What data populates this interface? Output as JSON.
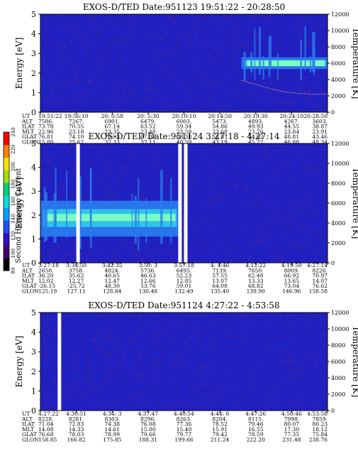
{
  "chart_data": [
    {
      "type": "heatmap",
      "title": "EXOS-D/TED   Date:951123   19:51:22 - 20:28:50",
      "ylabel": "Energy [eV]",
      "ylabel_right": "Temperature [K]",
      "ylim": [
        0,
        5
      ],
      "ylim_right": [
        0,
        12000
      ],
      "yticks": [
        "0",
        "1",
        "2",
        "3",
        "4",
        "5"
      ],
      "yticks_right": [
        "0",
        "2000",
        "4000",
        "6000",
        "8000",
        "10000",
        "12000"
      ],
      "band": {
        "start_frac": 0.7,
        "energy_low": 2.2,
        "energy_high": 2.8,
        "peak_energy": 2.5
      },
      "temperature_curve": [
        {
          "x": 0.7,
          "t": 3900
        },
        {
          "x": 0.75,
          "t": 3400
        },
        {
          "x": 0.8,
          "t": 2900
        },
        {
          "x": 0.85,
          "t": 2500
        },
        {
          "x": 0.9,
          "t": 2300
        },
        {
          "x": 0.95,
          "t": 2200
        },
        {
          "x": 1.0,
          "t": 2200
        }
      ],
      "rows": [
        {
          "label": "UT",
          "values": [
            "19:51:22",
            "19:56:10",
            "20: 0:58",
            "20: 5:30",
            "20:10:10",
            "20:14:50",
            "20:19:30",
            "20:24:10",
            "20:28:50"
          ]
        },
        {
          "label": "ALT",
          "values": [
            "7586.",
            "7267.",
            "6901.",
            "6479.",
            "6003.",
            "5473.",
            "4893.",
            "4267.",
            "3603."
          ]
        },
        {
          "label": "ILAT",
          "values": [
            "73.78",
            "70.55",
            "67.14",
            "63.52",
            "59.34",
            "54.86",
            "49.93",
            "44.55",
            "38.87"
          ]
        },
        {
          "label": "MLT",
          "values": [
            "22.96",
            "23.18",
            "23.35",
            "23.48",
            "23.59",
            "23.68",
            "23.76",
            "23.84",
            "23.91"
          ]
        },
        {
          "label": "GLAT",
          "values": [
            "76.81",
            "74.10",
            "70.93",
            "67.32",
            "63.30",
            "58.87",
            "54.02",
            "48.81",
            "43.46"
          ]
        },
        {
          "label": "GLON",
          "values": [
            "15.80",
            "25.62",
            "32.33",
            "37.11",
            "40.59",
            "43.19",
            "45.22",
            "46.88",
            "48.34"
          ]
        }
      ]
    },
    {
      "type": "heatmap",
      "title": "EXOS-D/TED   Date:951124   3:27:18 - 4:27:14",
      "ylabel": "Energy [eV]",
      "ylabel_right": "Temperature [K]",
      "ylim": [
        0,
        5
      ],
      "ylim_right": [
        0,
        12000
      ],
      "yticks": [
        "0",
        "1",
        "2",
        "3",
        "4",
        "5"
      ],
      "yticks_right": [
        "0",
        "2000",
        "4000",
        "6000",
        "8000",
        "10000",
        "12000"
      ],
      "band": {
        "start_frac": 0.0,
        "end_frac": 0.48,
        "energy_low": 1.1,
        "energy_high": 2.6,
        "peak_energy": 1.9
      },
      "data_gaps_frac": [
        0.125,
        0.48,
        0.5
      ],
      "colorbar": {
        "label": "Second Harmonic Current",
        "ticks": [
          "80",
          "100",
          "120",
          "140",
          "160",
          "180",
          "200",
          "220",
          "240"
        ]
      },
      "rows": [
        {
          "label": "UT",
          "values": [
            "3:27:18",
            "3:34:50",
            "3:42:35",
            "3:50: 3",
            "3:57:18",
            "4: 4:46",
            "4:12:22",
            "4:19:50",
            "4:27:14"
          ]
        },
        {
          "label": "ALT",
          "values": [
            "2650.",
            "3758.",
            "4824.",
            "5736.",
            "6495.",
            "7139.",
            "7650.",
            "8009.",
            "8226."
          ]
        },
        {
          "label": "ILAT",
          "values": [
            "36.20",
            "35.62",
            "40.65",
            "46.63",
            "52.23",
            "57.55",
            "62.48",
            "66.92",
            "70.97"
          ]
        },
        {
          "label": "MLT",
          "values": [
            "12.02",
            "12.27",
            "12.47",
            "12.66",
            "12.85",
            "13.07",
            "13.33",
            "13.65",
            "14.07"
          ]
        },
        {
          "label": "GLAT",
          "values": [
            "-26.15",
            "-25.72",
            "48.30",
            "53.76",
            "59.01",
            "64.08",
            "68.82",
            "73.04",
            "76.62"
          ]
        },
        {
          "label": "GLON",
          "values": [
            "125.19",
            "127.11",
            "128.84",
            "130.48",
            "132.49",
            "135.40",
            "139.90",
            "146.96",
            "158.58"
          ]
        }
      ]
    },
    {
      "type": "heatmap",
      "title": "EXOS-D/TED   Date:951124   4:27:22 - 4:53:58",
      "ylabel": "Energy [eV]",
      "ylabel_right": "Temperature [K]",
      "ylim": [
        0,
        5
      ],
      "ylim_right": [
        0,
        12000
      ],
      "yticks": [
        "0",
        "1",
        "2",
        "3",
        "4",
        "5"
      ],
      "yticks_right": [
        "0",
        "2000",
        "4000",
        "6000",
        "8000",
        "10000",
        "12000"
      ],
      "data_gaps_frac": [
        0.06
      ],
      "rows": [
        {
          "label": "UT",
          "values": [
            "4:27:22",
            "4:30:51",
            "4:34: 3",
            "4:37:47",
            "4:40:54",
            "4:44: 6",
            "4:47:26",
            "4:50:46",
            "4:53:58"
          ]
        },
        {
          "label": "ALT",
          "values": [
            "8228.",
            "8281.",
            "8303.",
            "8296.",
            "8263.",
            "8204.",
            "8115.",
            "7998.",
            "7859."
          ]
        },
        {
          "label": "ILAT",
          "values": [
            "71.04",
            "72.83",
            "74.38",
            "76.08",
            "77.36",
            "78.52",
            "79.46",
            "80.07",
            "80.23"
          ]
        },
        {
          "label": "MLT",
          "values": [
            "14.08",
            "14.33",
            "14.61",
            "15.00",
            "15.40",
            "15.91",
            "16.55",
            "17.30",
            "18.12"
          ]
        },
        {
          "label": "GLAT",
          "values": [
            "76.68",
            "78.03",
            "78.99",
            "79.66",
            "79.77",
            "79.42",
            "78.59",
            "77.35",
            "75.84"
          ]
        },
        {
          "label": "GLON",
          "values": [
            "158.85",
            "166.82",
            "175.85",
            "188.31",
            "199.66",
            "211.24",
            "222.20",
            "231.48",
            "238.76"
          ]
        }
      ]
    }
  ],
  "colors": {
    "background": "#2020c0",
    "noise": "#c03020",
    "band_low": "#2a7cf0",
    "band_mid": "#30c8e8",
    "band_high": "#80ffc0",
    "band_peak": "#e8ffb0"
  }
}
